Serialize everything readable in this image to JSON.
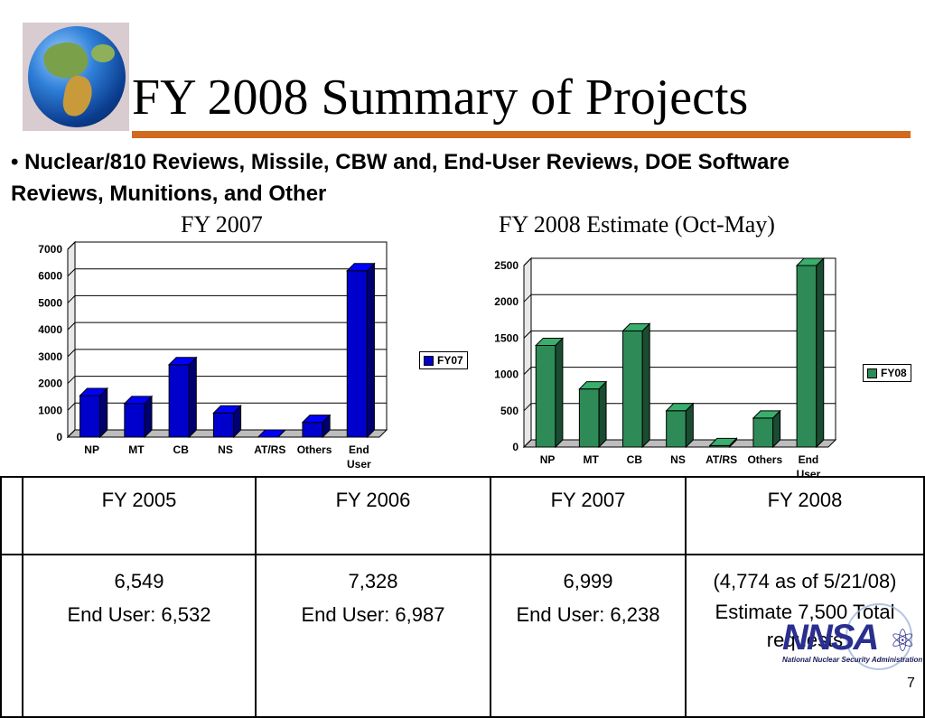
{
  "slide": {
    "title": "FY 2008 Summary of Projects",
    "bullet": "• Nuclear/810 Reviews, Missile, CBW and,  End-User Reviews, DOE Software Reviews, Munitions, and Other",
    "page_number": "7",
    "logo": {
      "name": "NNSA",
      "subtitle": "National Nuclear Security Administration"
    }
  },
  "chart_data": [
    {
      "type": "bar",
      "title": "FY 2007",
      "categories": [
        "NP",
        "MT",
        "CB",
        "NS",
        "AT/RS",
        "Others",
        "End User"
      ],
      "series": [
        {
          "name": "FY07",
          "values": [
            1550,
            1250,
            2700,
            900,
            0,
            550,
            6200
          ],
          "color": "#0000cc"
        }
      ],
      "ylim": [
        0,
        7000
      ],
      "yticks": [
        0,
        1000,
        2000,
        3000,
        4000,
        5000,
        6000,
        7000
      ],
      "ytick_labels": [
        "0",
        "1000",
        "2000",
        "3000",
        "4000",
        "5000",
        "6000",
        "7000"
      ],
      "grid": true,
      "legend": "right"
    },
    {
      "type": "bar",
      "title": "FY 2008 Estimate (Oct-May)",
      "categories": [
        "NP",
        "MT",
        "CB",
        "NS",
        "AT/RS",
        "Others",
        "End User"
      ],
      "series": [
        {
          "name": "FY08",
          "values": [
            1400,
            800,
            1600,
            500,
            20,
            400,
            2500
          ],
          "color": "#2e8b57"
        }
      ],
      "ylim": [
        0,
        2500
      ],
      "yticks": [
        0,
        500,
        1000,
        1500,
        2000,
        2500
      ],
      "ytick_labels": [
        "0",
        "500",
        "1000",
        "1500",
        "2000",
        "2500"
      ],
      "grid": true,
      "legend": "right"
    }
  ],
  "table": {
    "headers": [
      "FY 2005",
      "FY 2006",
      "FY 2007",
      "FY 2008"
    ],
    "rows": [
      [
        [
          "6,549",
          "End User: 6,532"
        ],
        [
          "7,328",
          "End User: 6,987"
        ],
        [
          "6,999",
          "End User: 6,238"
        ],
        [
          "(4,774 as of 5/21/08)",
          "Estimate 7,500 Total requests"
        ]
      ]
    ]
  }
}
